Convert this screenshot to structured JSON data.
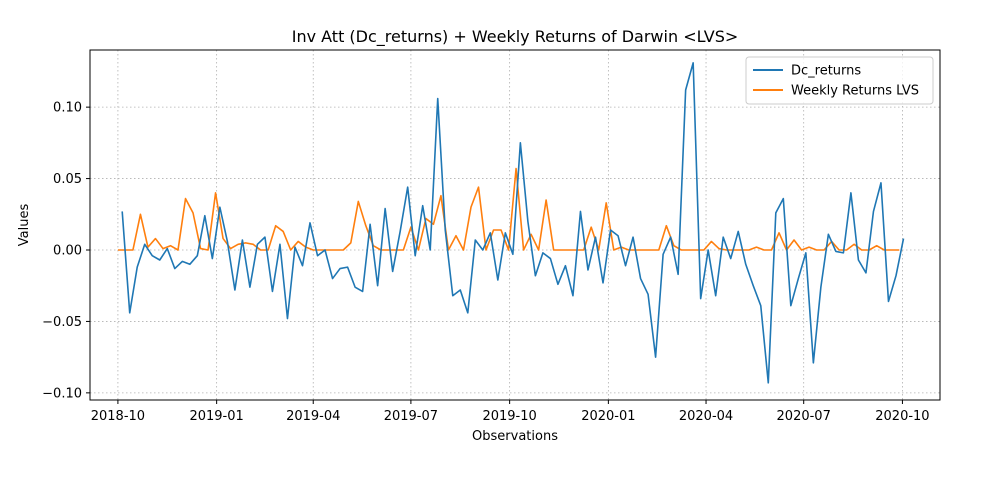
{
  "chart_data": {
    "type": "line",
    "title": "Inv Att (Dc_returns) + Weekly Returns of Darwin <LVS>",
    "xlabel": "Observations",
    "ylabel": "Values",
    "x_tick_labels": [
      "2018-10",
      "2019-01",
      "2019-04",
      "2019-07",
      "2019-10",
      "2020-01",
      "2020-04",
      "2020-07",
      "2020-10"
    ],
    "y_tick_labels": [
      "−0.10",
      "−0.05",
      "0.00",
      "0.05",
      "0.10"
    ],
    "y_ticks": [
      -0.1,
      -0.05,
      0.0,
      0.05,
      0.1
    ],
    "ylim": [
      -0.105,
      0.14
    ],
    "xlim": [
      "2018-09-05",
      "2020-11-05"
    ],
    "grid": true,
    "legend_position": "top-right",
    "series": [
      {
        "name": "Dc_returns",
        "color": "#1f77b4",
        "points": [
          [
            "2018-10-05",
            0.027
          ],
          [
            "2018-10-12",
            -0.044
          ],
          [
            "2018-10-19",
            -0.012
          ],
          [
            "2018-10-26",
            0.004
          ],
          [
            "2018-11-02",
            -0.004
          ],
          [
            "2018-11-09",
            -0.007
          ],
          [
            "2018-11-16",
            0.001
          ],
          [
            "2018-11-23",
            -0.013
          ],
          [
            "2018-11-30",
            -0.008
          ],
          [
            "2018-12-07",
            -0.01
          ],
          [
            "2018-12-14",
            -0.004
          ],
          [
            "2018-12-21",
            0.024
          ],
          [
            "2018-12-28",
            -0.006
          ],
          [
            "2019-01-04",
            0.03
          ],
          [
            "2019-01-11",
            0.006
          ],
          [
            "2019-01-18",
            -0.028
          ],
          [
            "2019-01-25",
            0.007
          ],
          [
            "2019-02-01",
            -0.026
          ],
          [
            "2019-02-08",
            0.004
          ],
          [
            "2019-02-15",
            0.009
          ],
          [
            "2019-02-22",
            -0.029
          ],
          [
            "2019-03-01",
            0.004
          ],
          [
            "2019-03-08",
            -0.048
          ],
          [
            "2019-03-15",
            0.002
          ],
          [
            "2019-03-22",
            -0.011
          ],
          [
            "2019-03-29",
            0.019
          ],
          [
            "2019-04-05",
            -0.004
          ],
          [
            "2019-04-12",
            0.0
          ],
          [
            "2019-04-19",
            -0.02
          ],
          [
            "2019-04-26",
            -0.013
          ],
          [
            "2019-05-03",
            -0.012
          ],
          [
            "2019-05-10",
            -0.026
          ],
          [
            "2019-05-17",
            -0.029
          ],
          [
            "2019-05-24",
            0.018
          ],
          [
            "2019-05-31",
            -0.025
          ],
          [
            "2019-06-07",
            0.029
          ],
          [
            "2019-06-14",
            -0.015
          ],
          [
            "2019-06-21",
            0.013
          ],
          [
            "2019-06-28",
            0.044
          ],
          [
            "2019-07-05",
            -0.004
          ],
          [
            "2019-07-12",
            0.031
          ],
          [
            "2019-07-19",
            0.0
          ],
          [
            "2019-07-26",
            0.106
          ],
          [
            "2019-08-02",
            0.014
          ],
          [
            "2019-08-09",
            -0.032
          ],
          [
            "2019-08-16",
            -0.028
          ],
          [
            "2019-08-23",
            -0.044
          ],
          [
            "2019-08-30",
            0.007
          ],
          [
            "2019-09-06",
            0.0
          ],
          [
            "2019-09-13",
            0.012
          ],
          [
            "2019-09-20",
            -0.021
          ],
          [
            "2019-09-27",
            0.012
          ],
          [
            "2019-10-04",
            -0.003
          ],
          [
            "2019-10-11",
            0.075
          ],
          [
            "2019-10-18",
            0.02
          ],
          [
            "2019-10-25",
            -0.018
          ],
          [
            "2019-11-01",
            -0.002
          ],
          [
            "2019-11-08",
            -0.006
          ],
          [
            "2019-11-15",
            -0.024
          ],
          [
            "2019-11-22",
            -0.011
          ],
          [
            "2019-11-29",
            -0.032
          ],
          [
            "2019-12-06",
            0.027
          ],
          [
            "2019-12-13",
            -0.014
          ],
          [
            "2019-12-20",
            0.009
          ],
          [
            "2019-12-27",
            -0.023
          ],
          [
            "2020-01-03",
            0.014
          ],
          [
            "2020-01-10",
            0.01
          ],
          [
            "2020-01-17",
            -0.011
          ],
          [
            "2020-01-24",
            0.009
          ],
          [
            "2020-01-31",
            -0.02
          ],
          [
            "2020-02-07",
            -0.031
          ],
          [
            "2020-02-14",
            -0.075
          ],
          [
            "2020-02-21",
            -0.003
          ],
          [
            "2020-02-28",
            0.009
          ],
          [
            "2020-03-06",
            -0.017
          ],
          [
            "2020-03-13",
            0.112
          ],
          [
            "2020-03-20",
            0.131
          ],
          [
            "2020-03-27",
            -0.034
          ],
          [
            "2020-04-03",
            0.0
          ],
          [
            "2020-04-10",
            -0.032
          ],
          [
            "2020-04-17",
            0.009
          ],
          [
            "2020-04-24",
            -0.006
          ],
          [
            "2020-05-01",
            0.013
          ],
          [
            "2020-05-08",
            -0.01
          ],
          [
            "2020-05-15",
            -0.025
          ],
          [
            "2020-05-22",
            -0.039
          ],
          [
            "2020-05-29",
            -0.093
          ],
          [
            "2020-06-05",
            0.026
          ],
          [
            "2020-06-12",
            0.036
          ],
          [
            "2020-06-19",
            -0.039
          ],
          [
            "2020-06-26",
            -0.02
          ],
          [
            "2020-07-03",
            -0.002
          ],
          [
            "2020-07-10",
            -0.079
          ],
          [
            "2020-07-17",
            -0.026
          ],
          [
            "2020-07-24",
            0.011
          ],
          [
            "2020-07-31",
            -0.001
          ],
          [
            "2020-08-07",
            -0.002
          ],
          [
            "2020-08-14",
            0.04
          ],
          [
            "2020-08-21",
            -0.007
          ],
          [
            "2020-08-28",
            -0.016
          ],
          [
            "2020-09-04",
            0.027
          ],
          [
            "2020-09-11",
            0.047
          ],
          [
            "2020-09-18",
            -0.036
          ],
          [
            "2020-09-25",
            -0.018
          ],
          [
            "2020-10-02",
            0.008
          ]
        ]
      },
      {
        "name": "Weekly Returns LVS",
        "color": "#ff7f0e",
        "points": [
          [
            "2018-10-01",
            0.0
          ],
          [
            "2018-10-08",
            0.0
          ],
          [
            "2018-10-15",
            0.0
          ],
          [
            "2018-10-22",
            0.025
          ],
          [
            "2018-10-29",
            0.002
          ],
          [
            "2018-11-05",
            0.008
          ],
          [
            "2018-11-12",
            0.001
          ],
          [
            "2018-11-19",
            0.003
          ],
          [
            "2018-11-26",
            0.0
          ],
          [
            "2018-12-03",
            0.036
          ],
          [
            "2018-12-10",
            0.026
          ],
          [
            "2018-12-17",
            0.001
          ],
          [
            "2018-12-24",
            0.0
          ],
          [
            "2018-12-31",
            0.04
          ],
          [
            "2019-01-07",
            0.008
          ],
          [
            "2019-01-14",
            0.001
          ],
          [
            "2019-01-21",
            0.004
          ],
          [
            "2019-01-28",
            0.005
          ],
          [
            "2019-02-04",
            0.004
          ],
          [
            "2019-02-11",
            0.0
          ],
          [
            "2019-02-18",
            0.0
          ],
          [
            "2019-02-25",
            0.017
          ],
          [
            "2019-03-04",
            0.013
          ],
          [
            "2019-03-11",
            0.0
          ],
          [
            "2019-03-18",
            0.006
          ],
          [
            "2019-03-25",
            0.002
          ],
          [
            "2019-04-01",
            0.0
          ],
          [
            "2019-04-08",
            0.0
          ],
          [
            "2019-04-15",
            0.0
          ],
          [
            "2019-04-22",
            0.0
          ],
          [
            "2019-04-29",
            0.0
          ],
          [
            "2019-05-06",
            0.005
          ],
          [
            "2019-05-13",
            0.034
          ],
          [
            "2019-05-20",
            0.017
          ],
          [
            "2019-05-27",
            0.003
          ],
          [
            "2019-06-03",
            0.0
          ],
          [
            "2019-06-10",
            0.0
          ],
          [
            "2019-06-17",
            0.0
          ],
          [
            "2019-06-24",
            0.0
          ],
          [
            "2019-07-01",
            0.016
          ],
          [
            "2019-07-08",
            0.0
          ],
          [
            "2019-07-15",
            0.022
          ],
          [
            "2019-07-22",
            0.018
          ],
          [
            "2019-07-29",
            0.038
          ],
          [
            "2019-08-05",
            0.0
          ],
          [
            "2019-08-12",
            0.01
          ],
          [
            "2019-08-19",
            0.0
          ],
          [
            "2019-08-26",
            0.03
          ],
          [
            "2019-09-02",
            0.044
          ],
          [
            "2019-09-09",
            0.0
          ],
          [
            "2019-09-16",
            0.014
          ],
          [
            "2019-09-23",
            0.014
          ],
          [
            "2019-09-30",
            0.0
          ],
          [
            "2019-10-07",
            0.057
          ],
          [
            "2019-10-14",
            0.0
          ],
          [
            "2019-10-21",
            0.011
          ],
          [
            "2019-10-28",
            0.0
          ],
          [
            "2019-11-04",
            0.035
          ],
          [
            "2019-11-11",
            0.0
          ],
          [
            "2019-11-18",
            0.0
          ],
          [
            "2019-11-25",
            0.0
          ],
          [
            "2019-12-02",
            0.0
          ],
          [
            "2019-12-09",
            0.0
          ],
          [
            "2019-12-16",
            0.016
          ],
          [
            "2019-12-23",
            0.0
          ],
          [
            "2019-12-30",
            0.033
          ],
          [
            "2020-01-06",
            0.0
          ],
          [
            "2020-01-13",
            0.002
          ],
          [
            "2020-01-20",
            0.0
          ],
          [
            "2020-01-27",
            0.0
          ],
          [
            "2020-02-03",
            0.0
          ],
          [
            "2020-02-10",
            0.0
          ],
          [
            "2020-02-17",
            0.0
          ],
          [
            "2020-02-24",
            0.017
          ],
          [
            "2020-03-02",
            0.003
          ],
          [
            "2020-03-09",
            0.0
          ],
          [
            "2020-03-16",
            0.0
          ],
          [
            "2020-03-23",
            0.0
          ],
          [
            "2020-03-30",
            0.0
          ],
          [
            "2020-04-06",
            0.006
          ],
          [
            "2020-04-13",
            0.001
          ],
          [
            "2020-04-20",
            0.0
          ],
          [
            "2020-04-27",
            0.0
          ],
          [
            "2020-05-04",
            0.0
          ],
          [
            "2020-05-11",
            0.0
          ],
          [
            "2020-05-18",
            0.002
          ],
          [
            "2020-05-25",
            0.0
          ],
          [
            "2020-06-01",
            0.0
          ],
          [
            "2020-06-08",
            0.012
          ],
          [
            "2020-06-15",
            0.0
          ],
          [
            "2020-06-22",
            0.007
          ],
          [
            "2020-06-29",
            0.0
          ],
          [
            "2020-07-06",
            0.002
          ],
          [
            "2020-07-13",
            0.0
          ],
          [
            "2020-07-20",
            0.0
          ],
          [
            "2020-07-27",
            0.006
          ],
          [
            "2020-08-03",
            0.0
          ],
          [
            "2020-08-10",
            0.0
          ],
          [
            "2020-08-17",
            0.004
          ],
          [
            "2020-08-24",
            0.0
          ],
          [
            "2020-08-31",
            0.0
          ],
          [
            "2020-09-07",
            0.003
          ],
          [
            "2020-09-14",
            0.0
          ],
          [
            "2020-09-21",
            0.0
          ],
          [
            "2020-09-28",
            0.0
          ]
        ]
      }
    ]
  }
}
